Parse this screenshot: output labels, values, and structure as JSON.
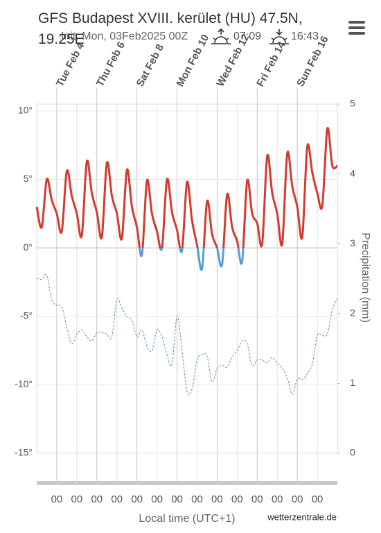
{
  "chart_data": {
    "type": "line",
    "title": "GFS Budapest XVIII. kerület (HU) 47.5N, 19.25E",
    "subtitle": "Init: Mon, 03Feb2025 00Z",
    "sunrise": "07:09",
    "sunset": "16:43",
    "x_label": "Local time (UTC+1)",
    "y2_label": "Precipitation (mm)",
    "credit": "wetterzentrale.de",
    "x": [
      "2025-02-03T00:00",
      "2025-02-03T06:00",
      "2025-02-03T12:00",
      "2025-02-03T18:00",
      "2025-02-04T00:00",
      "2025-02-04T06:00",
      "2025-02-04T12:00",
      "2025-02-04T18:00",
      "2025-02-05T00:00",
      "2025-02-05T06:00",
      "2025-02-05T12:00",
      "2025-02-05T18:00",
      "2025-02-06T00:00",
      "2025-02-06T06:00",
      "2025-02-06T12:00",
      "2025-02-06T18:00",
      "2025-02-07T00:00",
      "2025-02-07T06:00",
      "2025-02-07T12:00",
      "2025-02-07T18:00",
      "2025-02-08T00:00",
      "2025-02-08T06:00",
      "2025-02-08T12:00",
      "2025-02-08T18:00",
      "2025-02-09T00:00",
      "2025-02-09T06:00",
      "2025-02-09T12:00",
      "2025-02-09T18:00",
      "2025-02-10T00:00",
      "2025-02-10T06:00",
      "2025-02-10T12:00",
      "2025-02-10T18:00",
      "2025-02-11T00:00",
      "2025-02-11T06:00",
      "2025-02-11T12:00",
      "2025-02-11T18:00",
      "2025-02-12T00:00",
      "2025-02-12T06:00",
      "2025-02-12T12:00",
      "2025-02-12T18:00",
      "2025-02-13T00:00",
      "2025-02-13T06:00",
      "2025-02-13T12:00",
      "2025-02-13T18:00",
      "2025-02-14T00:00",
      "2025-02-14T06:00",
      "2025-02-14T12:00",
      "2025-02-14T18:00",
      "2025-02-15T00:00",
      "2025-02-15T06:00",
      "2025-02-15T12:00",
      "2025-02-15T18:00",
      "2025-02-16T00:00",
      "2025-02-16T06:00",
      "2025-02-16T12:00",
      "2025-02-16T18:00",
      "2025-02-17T00:00",
      "2025-02-17T06:00",
      "2025-02-17T12:00",
      "2025-02-17T18:00",
      "2025-02-18T00:00"
    ],
    "series": [
      {
        "color": "#d43a2f",
        "color_below_zero": "#5b9bd5",
        "dashed": false,
        "values": [
          3,
          1.5,
          5,
          3.5,
          2.5,
          1.2,
          5.6,
          3.8,
          2.5,
          0.9,
          6.3,
          4,
          2.6,
          0.8,
          6.2,
          3.8,
          2.5,
          0.7,
          5.7,
          3,
          1.5,
          -0.5,
          4.9,
          2.5,
          1.2,
          0,
          5,
          2.6,
          1.3,
          -0.2,
          4.8,
          2,
          0.2,
          -1.5,
          3.4,
          1,
          0,
          -1.2,
          3.9,
          1.5,
          0.5,
          -1,
          4.9,
          2.5,
          1.8,
          0.3,
          6.7,
          4,
          2.5,
          0.3,
          6.9,
          4.5,
          3,
          0.8,
          7.4,
          5.5,
          4,
          3.1,
          8.7,
          6,
          6
        ]
      },
      {
        "color": "#5b8fb8",
        "dashed": true,
        "values": [
          -2.2,
          -2.3,
          -2.0,
          -3.8,
          -4.2,
          -4.3,
          -5.8,
          -7.0,
          -6.3,
          -6.0,
          -6.5,
          -6.8,
          -6.2,
          -6.2,
          -6.3,
          -6.5,
          -3.8,
          -4.4,
          -5.0,
          -5.3,
          -6.5,
          -6.0,
          -7.2,
          -7.5,
          -6.0,
          -6.5,
          -7.8,
          -8.5,
          -5.0,
          -7.5,
          -10.5,
          -10.3,
          -8.2,
          -7.8,
          -7.9,
          -9.8,
          -8.8,
          -8.6,
          -8.7,
          -8.0,
          -7.5,
          -6.8,
          -7.0,
          -8.6,
          -8.2,
          -8.2,
          -8.4,
          -8.0,
          -8.4,
          -8.8,
          -9.5,
          -10.7,
          -9.6,
          -9.6,
          -9.2,
          -8.5,
          -6.4,
          -6.4,
          -6.3,
          -4.5,
          -3.7
        ]
      }
    ],
    "xlim": [
      "2025-02-03T00:00",
      "2025-02-18T00:00"
    ],
    "xticks": [
      {
        "value": "2025-02-04T00:00",
        "label": "Tue Feb 4"
      },
      {
        "value": "2025-02-06T00:00",
        "label": "Thu Feb 6"
      },
      {
        "value": "2025-02-08T00:00",
        "label": "Sat Feb 8"
      },
      {
        "value": "2025-02-10T00:00",
        "label": "Mon Feb 10"
      },
      {
        "value": "2025-02-12T00:00",
        "label": "Wed Feb 12"
      },
      {
        "value": "2025-02-14T00:00",
        "label": "Fri Feb 14"
      },
      {
        "value": "2025-02-16T00:00",
        "label": "Sun Feb 16"
      }
    ],
    "bottom_ticks": [
      {
        "value": "2025-02-04T00:00",
        "label": "00"
      },
      {
        "value": "2025-02-05T00:00",
        "label": "00"
      },
      {
        "value": "2025-02-06T00:00",
        "label": "00"
      },
      {
        "value": "2025-02-07T00:00",
        "label": "00"
      },
      {
        "value": "2025-02-08T00:00",
        "label": "00"
      },
      {
        "value": "2025-02-09T00:00",
        "label": "00"
      },
      {
        "value": "2025-02-10T00:00",
        "label": "00"
      },
      {
        "value": "2025-02-11T00:00",
        "label": "00"
      },
      {
        "value": "2025-02-12T00:00",
        "label": "00"
      },
      {
        "value": "2025-02-13T00:00",
        "label": "00"
      },
      {
        "value": "2025-02-14T00:00",
        "label": "00"
      },
      {
        "value": "2025-02-15T00:00",
        "label": "00"
      },
      {
        "value": "2025-02-16T00:00",
        "label": "00"
      },
      {
        "value": "2025-02-17T00:00",
        "label": "00"
      }
    ],
    "ylim": [
      -15,
      10.5
    ],
    "yticks": [
      {
        "value": 10,
        "label": "10°"
      },
      {
        "value": 5,
        "label": "5°"
      },
      {
        "value": 0,
        "label": "0°"
      },
      {
        "value": -5,
        "label": "-5°"
      },
      {
        "value": -10,
        "label": "-10°"
      },
      {
        "value": -15,
        "label": "-15°"
      }
    ],
    "y2lim": [
      0,
      5
    ],
    "y2ticks": [
      0,
      1,
      2,
      3,
      4,
      5
    ],
    "grid": true
  }
}
